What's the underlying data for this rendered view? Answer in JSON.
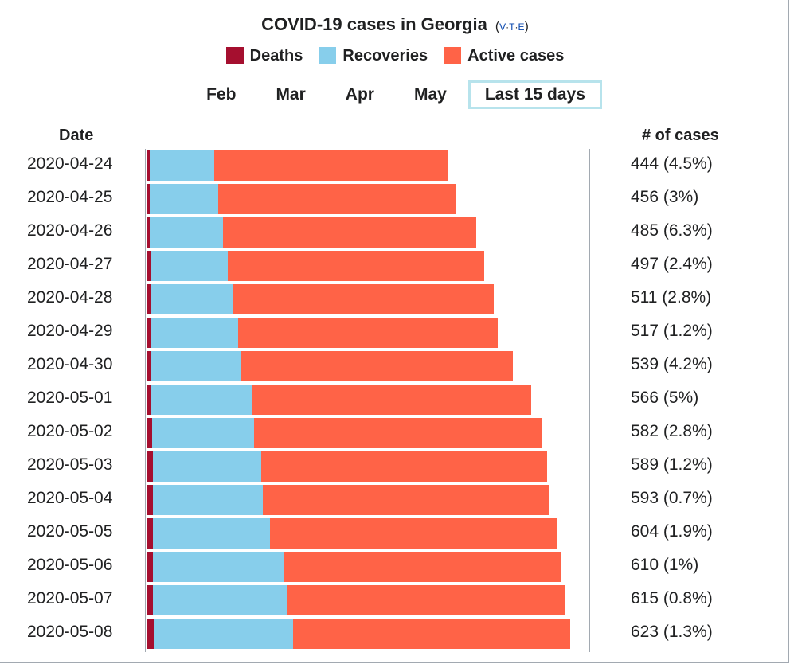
{
  "header": {
    "title": "COVID-19 cases in Georgia",
    "vte": [
      "V",
      "T",
      "E"
    ]
  },
  "legend": [
    {
      "label": "Deaths",
      "color": "#a50f2f"
    },
    {
      "label": "Recoveries",
      "color": "#87ceeb"
    },
    {
      "label": "Active cases",
      "color": "#ff6347"
    }
  ],
  "periods": {
    "items": [
      "Feb",
      "Mar",
      "Apr",
      "May",
      "Last 15 days"
    ],
    "selected": "Last 15 days"
  },
  "columns": {
    "date": "Date",
    "cases": "# of cases"
  },
  "chart_data": {
    "type": "bar",
    "orientation": "horizontal",
    "stacked": true,
    "title": "COVID-19 cases in Georgia",
    "categories": [
      "2020-04-24",
      "2020-04-25",
      "2020-04-26",
      "2020-04-27",
      "2020-04-28",
      "2020-04-29",
      "2020-04-30",
      "2020-05-01",
      "2020-05-02",
      "2020-05-03",
      "2020-05-04",
      "2020-05-05",
      "2020-05-06",
      "2020-05-07",
      "2020-05-08"
    ],
    "series": [
      {
        "name": "Deaths",
        "color": "#a50f2f",
        "values": [
          5,
          5,
          5,
          6,
          6,
          6,
          6,
          7,
          8,
          9,
          9,
          9,
          9,
          9,
          10
        ]
      },
      {
        "name": "Recoveries",
        "color": "#87ceeb",
        "values": [
          95,
          100,
          108,
          113,
          121,
          129,
          133,
          149,
          150,
          160,
          162,
          173,
          193,
          197,
          206
        ]
      },
      {
        "name": "Active cases",
        "color": "#ff6347",
        "values": [
          344,
          351,
          372,
          378,
          384,
          382,
          400,
          410,
          424,
          420,
          422,
          422,
          408,
          409,
          407
        ]
      }
    ],
    "totals": [
      444,
      456,
      485,
      497,
      511,
      517,
      539,
      566,
      582,
      589,
      593,
      604,
      610,
      615,
      623
    ],
    "labels": [
      "444 (4.5%)",
      "456 (3%)",
      "485 (6.3%)",
      "497 (2.4%)",
      "511 (2.8%)",
      "517 (1.2%)",
      "539 (4.2%)",
      "566 (5%)",
      "582 (2.8%)",
      "589 (1.2%)",
      "593 (0.7%)",
      "604 (1.9%)",
      "610 (1%)",
      "615 (0.8%)",
      "623 (1.3%)"
    ],
    "xlim": [
      0,
      623
    ]
  }
}
